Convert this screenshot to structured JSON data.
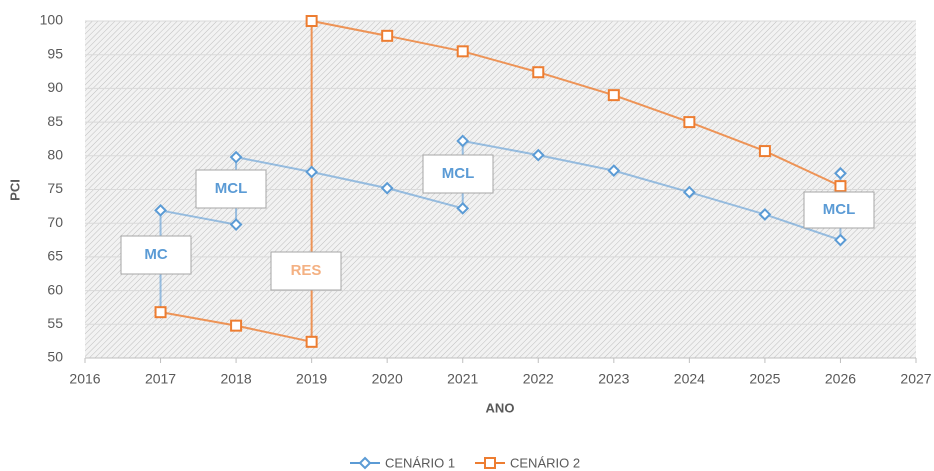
{
  "chart_data": {
    "type": "line",
    "x_label": "ANO",
    "y_label": "PCI",
    "xlim": [
      2016,
      2027
    ],
    "xticks": [
      2016,
      2017,
      2018,
      2019,
      2020,
      2021,
      2022,
      2023,
      2024,
      2025,
      2026,
      2027
    ],
    "ylim": [
      50,
      100
    ],
    "yticks": [
      50,
      55,
      60,
      65,
      70,
      75,
      80,
      85,
      90,
      95,
      100
    ],
    "grid": true,
    "legend": "bottom",
    "series": [
      {
        "name": "CENÁRIO 1",
        "color": "#5b9bd5",
        "marker": "diamond",
        "x": [
          2017,
          2017,
          2018,
          2018,
          2019,
          2020,
          2021,
          2021,
          2022,
          2023,
          2024,
          2025,
          2026,
          2026
        ],
        "values": [
          56.8,
          71.9,
          69.8,
          79.8,
          77.6,
          75.2,
          72.2,
          82.2,
          80.1,
          77.8,
          74.6,
          71.3,
          67.5,
          77.4
        ]
      },
      {
        "name": "CENÁRIO 2",
        "color": "#ed7d31",
        "marker": "square",
        "x": [
          2017,
          2018,
          2019,
          2019,
          2020,
          2021,
          2022,
          2023,
          2024,
          2025,
          2026
        ],
        "values": [
          56.8,
          54.8,
          52.4,
          100,
          97.8,
          95.5,
          92.4,
          89,
          85,
          80.7,
          75.5
        ]
      }
    ],
    "annotations": [
      {
        "text": "MC",
        "color": "#5b9bd5"
      },
      {
        "text": "MCL",
        "color": "#5b9bd5"
      },
      {
        "text": "RES",
        "color": "#f4b183"
      },
      {
        "text": "MCL",
        "color": "#5b9bd5"
      },
      {
        "text": "MCL",
        "color": "#5b9bd5"
      }
    ]
  }
}
